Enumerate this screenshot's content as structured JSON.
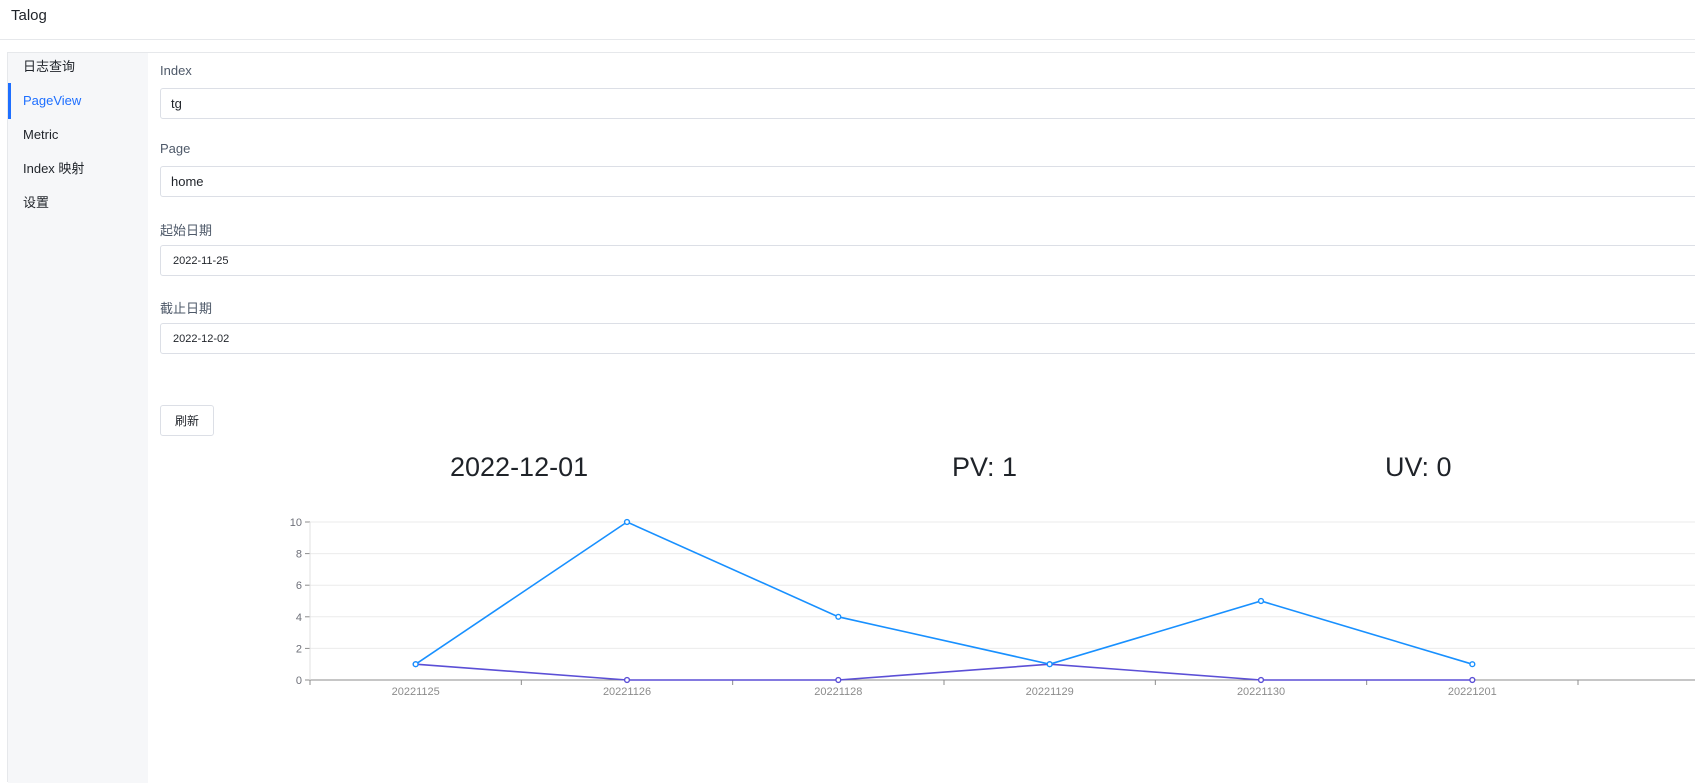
{
  "app": {
    "title": "Talog"
  },
  "sidebar": {
    "items": [
      {
        "label": "日志查询",
        "active": false
      },
      {
        "label": "PageView",
        "active": true
      },
      {
        "label": "Metric",
        "active": false
      },
      {
        "label": "Index 映射",
        "active": false
      },
      {
        "label": "设置",
        "active": false
      }
    ]
  },
  "form": {
    "index": {
      "label": "Index",
      "value": "tg"
    },
    "page": {
      "label": "Page",
      "value": "home"
    },
    "start_date": {
      "label": "起始日期",
      "value": "2022-11-25"
    },
    "end_date": {
      "label": "截止日期",
      "value": "2022-12-02"
    },
    "refresh_label": "刷新"
  },
  "stats": {
    "date": "2022-12-01",
    "pv": "PV: 1",
    "uv": "UV: 0"
  },
  "colors": {
    "accent": "#1e6fff",
    "pv_line": "#1890ff",
    "uv_line": "#5b4fd6"
  },
  "chart_data": {
    "type": "line",
    "categories": [
      "20221125",
      "20221126",
      "20221128",
      "20221129",
      "20221130",
      "20221201"
    ],
    "series": [
      {
        "values": [
          1,
          10,
          4,
          1,
          5,
          1
        ],
        "color": "#1890ff"
      },
      {
        "values": [
          1,
          0,
          0,
          1,
          0,
          0
        ],
        "color": "#5b4fd6"
      }
    ],
    "ylim": [
      0,
      10
    ],
    "yticks": [
      0,
      2,
      4,
      6,
      8,
      10
    ],
    "grid": true
  }
}
